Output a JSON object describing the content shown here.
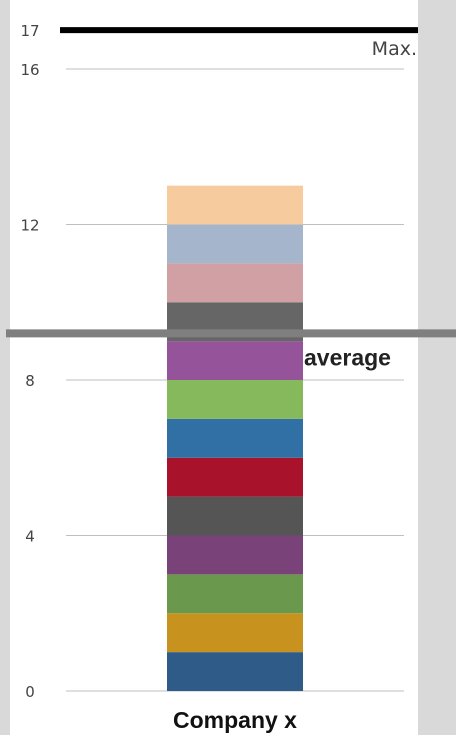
{
  "chart_data": {
    "type": "bar",
    "stacked": true,
    "categories": [
      "Company x"
    ],
    "series": [
      {
        "values": [
          1
        ],
        "color": "#2e5b88"
      },
      {
        "values": [
          1
        ],
        "color": "#c8921e"
      },
      {
        "values": [
          1
        ],
        "color": "#6a994e"
      },
      {
        "values": [
          1
        ],
        "color": "#79437a"
      },
      {
        "values": [
          1
        ],
        "color": "#555555"
      },
      {
        "values": [
          1
        ],
        "color": "#a9122b"
      },
      {
        "values": [
          1
        ],
        "color": "#3070a4"
      },
      {
        "values": [
          1
        ],
        "color": "#86b85c"
      },
      {
        "values": [
          1
        ],
        "color": "#955499"
      },
      {
        "values": [
          1
        ],
        "color": "#666666"
      },
      {
        "values": [
          1
        ],
        "color": "#d0a0a4"
      },
      {
        "values": [
          1
        ],
        "color": "#a5b6cc"
      },
      {
        "values": [
          1
        ],
        "color": "#f6cc9e"
      }
    ],
    "yticks": [
      0,
      4,
      8,
      12,
      16,
      17
    ],
    "ylim": [
      0,
      17
    ],
    "grid": true,
    "reference_lines": [
      {
        "label": "Max.",
        "value": 17,
        "color": "#000000"
      },
      {
        "label": "average",
        "value": 9.2,
        "color": "#7f7f7f"
      }
    ],
    "title": "",
    "xlabel": "",
    "ylabel": ""
  }
}
